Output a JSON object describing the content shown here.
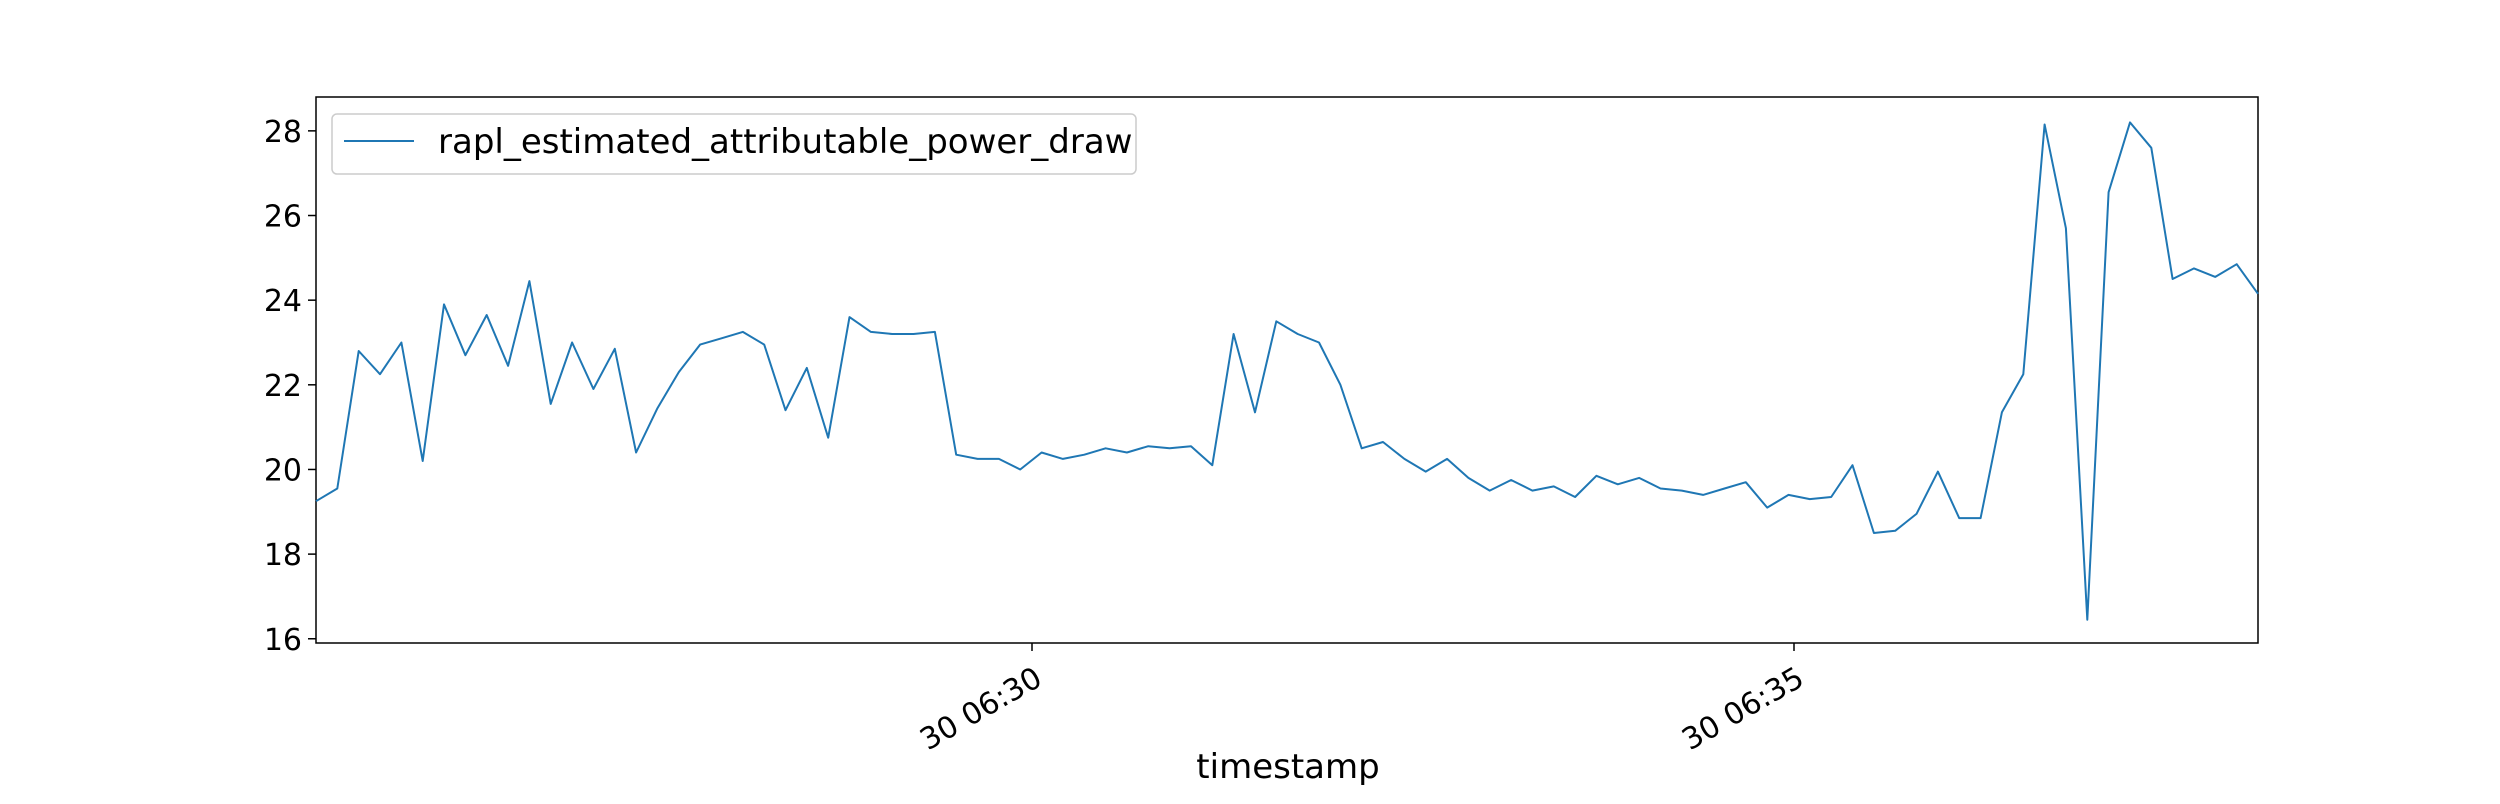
{
  "chart_data": {
    "type": "line",
    "title": "",
    "xlabel": "timestamp",
    "ylabel": "",
    "x_tick_labels": [
      "30 06:30",
      "30 06:35"
    ],
    "y_ticks": [
      16,
      18,
      20,
      22,
      24,
      26,
      28
    ],
    "ylim": [
      15.9,
      28.8
    ],
    "grid": false,
    "legend_position": "top-left",
    "series": [
      {
        "name": "rapl_estimated_attributable_power_draw",
        "color": "#1f77b4",
        "values": [
          19.25,
          19.55,
          22.8,
          22.25,
          23.0,
          20.2,
          23.9,
          22.7,
          23.65,
          22.45,
          24.45,
          21.55,
          23.0,
          21.9,
          22.85,
          20.4,
          21.45,
          22.3,
          22.95,
          23.1,
          23.25,
          22.95,
          21.4,
          22.4,
          20.75,
          23.6,
          23.25,
          23.2,
          23.2,
          23.25,
          20.35,
          20.25,
          20.25,
          20.0,
          20.4,
          20.25,
          20.35,
          20.5,
          20.4,
          20.55,
          20.5,
          20.55,
          20.1,
          23.2,
          21.35,
          23.5,
          23.2,
          23.0,
          22.0,
          20.5,
          20.65,
          20.25,
          19.95,
          20.25,
          19.8,
          19.5,
          19.75,
          19.5,
          19.6,
          19.35,
          19.85,
          19.65,
          19.8,
          19.55,
          19.5,
          19.4,
          19.55,
          19.7,
          19.1,
          19.4,
          19.3,
          19.35,
          20.1,
          18.5,
          18.55,
          18.95,
          19.95,
          18.85,
          18.85,
          21.35,
          22.25,
          28.15,
          25.7,
          16.45,
          26.55,
          28.2,
          27.6,
          24.5,
          24.75,
          24.55,
          24.85,
          24.15
        ]
      }
    ]
  }
}
